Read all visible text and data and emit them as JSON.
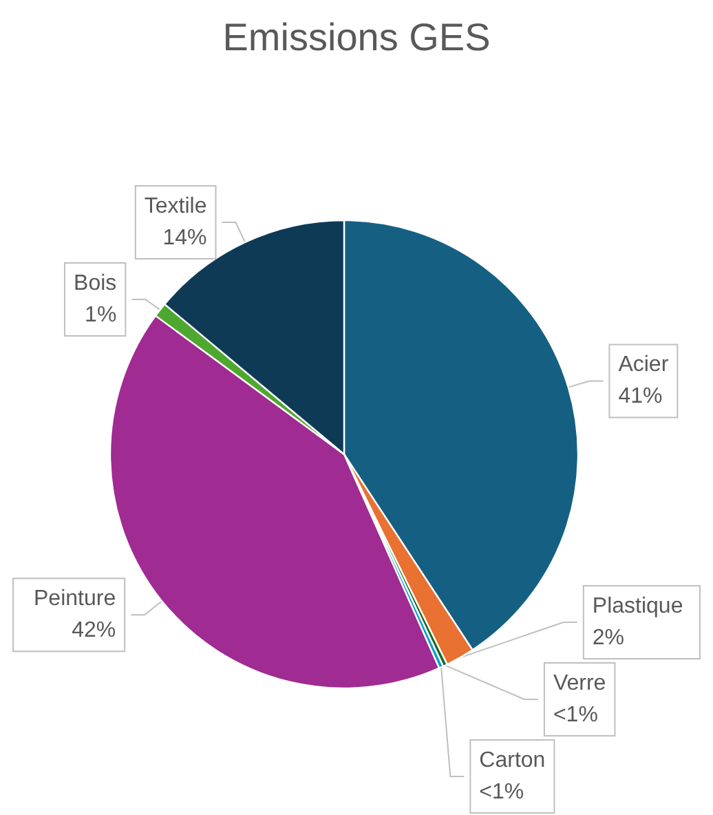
{
  "chart_data": {
    "type": "pie",
    "title": "Emissions GES",
    "categories": [
      "Acier",
      "Plastique",
      "Verre",
      "Carton",
      "Peinture",
      "Bois",
      "Textile"
    ],
    "values": [
      41,
      2,
      0.3,
      0.3,
      42,
      1,
      14
    ],
    "value_labels": [
      "41%",
      "2%",
      "<1%",
      "<1%",
      "42%",
      "1%",
      "14%"
    ],
    "colors": [
      "#156082",
      "#e97132",
      "#196b24",
      "#0f9ed5",
      "#a02b93",
      "#4ea72e",
      "#0e3a56"
    ]
  }
}
